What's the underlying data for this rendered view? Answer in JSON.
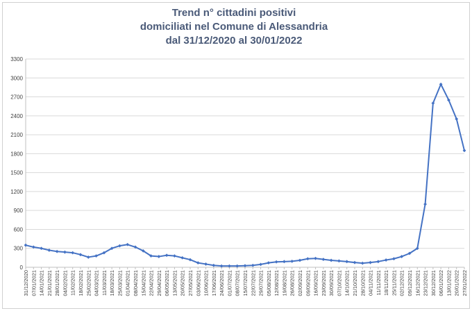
{
  "chart_data": {
    "type": "line",
    "title": [
      "Trend n° cittadini positivi",
      "domiciliati nel Comune di Alessandria",
      "dal 31/12/2020 al 30/01/2022"
    ],
    "xlabel": "",
    "ylabel": "",
    "ylim": [
      0,
      3300
    ],
    "yticks": [
      0,
      300,
      600,
      900,
      1200,
      1500,
      1800,
      2100,
      2400,
      2700,
      3000,
      3300
    ],
    "grid": true,
    "legend": "none",
    "categories": [
      "31/12/2020",
      "07/01/2021",
      "14/01/2021",
      "21/01/2021",
      "28/01/2021",
      "04/02/2021",
      "11/02/2021",
      "18/02/2021",
      "25/02/2021",
      "04/03/2021",
      "11/03/2021",
      "18/03/2021",
      "25/03/2021",
      "01/04/2021",
      "08/04/2021",
      "15/04/2021",
      "22/04/2021",
      "29/04/2021",
      "06/05/2021",
      "13/05/2021",
      "20/05/2021",
      "27/05/2021",
      "03/06/2021",
      "10/06/2021",
      "17/06/2021",
      "24/06/2021",
      "01/07/2021",
      "08/07/2021",
      "15/07/2021",
      "22/07/2021",
      "29/07/2021",
      "05/08/2021",
      "12/08/2021",
      "19/08/2021",
      "26/08/2021",
      "02/09/2021",
      "09/09/2021",
      "16/09/2021",
      "23/09/2021",
      "30/09/2021",
      "07/10/2021",
      "14/10/2021",
      "21/10/2021",
      "28/10/2021",
      "04/11/2021",
      "11/11/2021",
      "18/11/2021",
      "25/11/2021",
      "02/12/2021",
      "09/12/2021",
      "16/12/2021",
      "23/12/2021",
      "30/12/2021",
      "06/01/2022",
      "13/01/2022",
      "20/01/2022",
      "27/01/2022"
    ],
    "series": [
      {
        "color": "#4472c4",
        "values": [
          350,
          320,
          300,
          270,
          250,
          240,
          230,
          200,
          160,
          180,
          230,
          300,
          340,
          360,
          320,
          260,
          180,
          170,
          190,
          180,
          150,
          120,
          70,
          50,
          30,
          20,
          20,
          20,
          25,
          30,
          45,
          70,
          85,
          90,
          95,
          110,
          135,
          140,
          125,
          110,
          100,
          90,
          75,
          65,
          75,
          90,
          115,
          135,
          170,
          220,
          300,
          1000,
          2600,
          2900,
          2650,
          2350,
          1850
        ]
      }
    ]
  }
}
